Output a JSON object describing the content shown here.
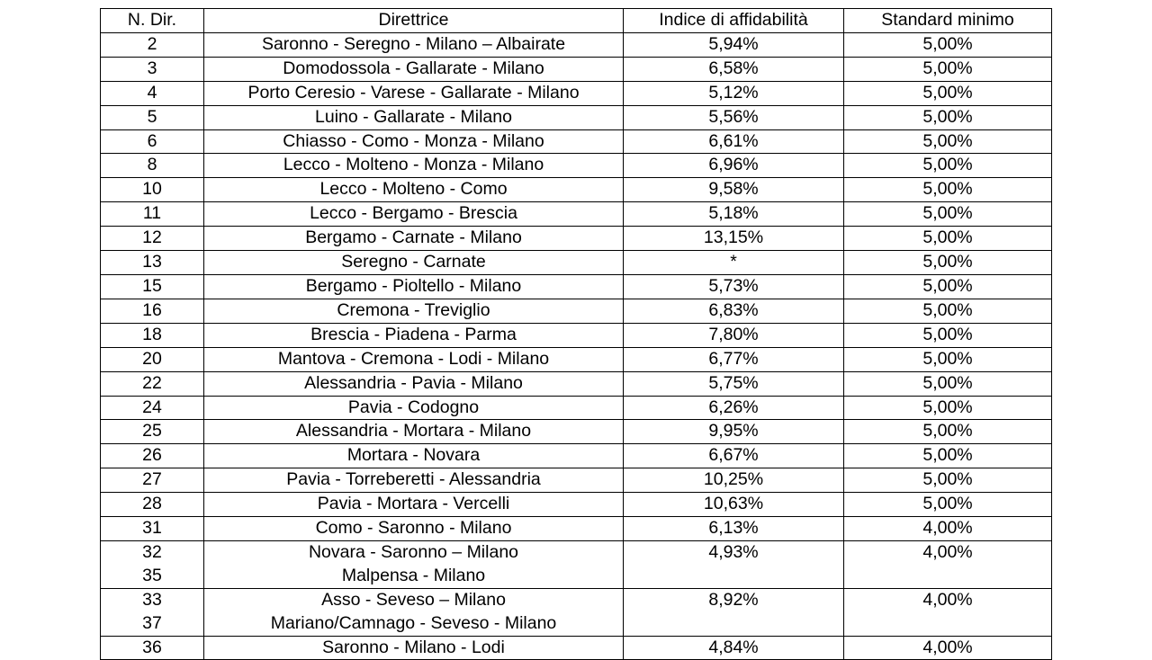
{
  "table": {
    "headers": [
      "N. Dir.",
      "Direttrice",
      "Indice di affidabilità",
      "Standard minimo"
    ],
    "rows": [
      {
        "n": [
          "2"
        ],
        "direttrice": [
          "Saronno - Seregno - Milano – Albairate"
        ],
        "indice": "5,94%",
        "standard": "5,00%"
      },
      {
        "n": [
          "3"
        ],
        "direttrice": [
          "Domodossola - Gallarate - Milano"
        ],
        "indice": "6,58%",
        "standard": "5,00%"
      },
      {
        "n": [
          "4"
        ],
        "direttrice": [
          "Porto Ceresio - Varese - Gallarate - Milano"
        ],
        "indice": "5,12%",
        "standard": "5,00%"
      },
      {
        "n": [
          "5"
        ],
        "direttrice": [
          "Luino - Gallarate - Milano"
        ],
        "indice": "5,56%",
        "standard": "5,00%"
      },
      {
        "n": [
          "6"
        ],
        "direttrice": [
          "Chiasso - Como - Monza - Milano"
        ],
        "indice": "6,61%",
        "standard": "5,00%"
      },
      {
        "n": [
          "8"
        ],
        "direttrice": [
          "Lecco - Molteno - Monza - Milano"
        ],
        "indice": "6,96%",
        "standard": "5,00%"
      },
      {
        "n": [
          "10"
        ],
        "direttrice": [
          "Lecco - Molteno - Como"
        ],
        "indice": "9,58%",
        "standard": "5,00%"
      },
      {
        "n": [
          "11"
        ],
        "direttrice": [
          "Lecco - Bergamo - Brescia"
        ],
        "indice": "5,18%",
        "standard": "5,00%"
      },
      {
        "n": [
          "12"
        ],
        "direttrice": [
          "Bergamo - Carnate - Milano"
        ],
        "indice": "13,15%",
        "standard": "5,00%"
      },
      {
        "n": [
          "13"
        ],
        "direttrice": [
          "Seregno - Carnate"
        ],
        "indice": "*",
        "standard": "5,00%"
      },
      {
        "n": [
          "15"
        ],
        "direttrice": [
          "Bergamo - Pioltello - Milano"
        ],
        "indice": "5,73%",
        "standard": "5,00%"
      },
      {
        "n": [
          "16"
        ],
        "direttrice": [
          "Cremona - Treviglio"
        ],
        "indice": "6,83%",
        "standard": "5,00%"
      },
      {
        "n": [
          "18"
        ],
        "direttrice": [
          "Brescia - Piadena - Parma"
        ],
        "indice": "7,80%",
        "standard": "5,00%"
      },
      {
        "n": [
          "20"
        ],
        "direttrice": [
          "Mantova - Cremona - Lodi - Milano"
        ],
        "indice": "6,77%",
        "standard": "5,00%"
      },
      {
        "n": [
          "22"
        ],
        "direttrice": [
          "Alessandria - Pavia - Milano"
        ],
        "indice": "5,75%",
        "standard": "5,00%"
      },
      {
        "n": [
          "24"
        ],
        "direttrice": [
          "Pavia - Codogno"
        ],
        "indice": "6,26%",
        "standard": "5,00%"
      },
      {
        "n": [
          "25"
        ],
        "direttrice": [
          "Alessandria - Mortara - Milano"
        ],
        "indice": "9,95%",
        "standard": "5,00%"
      },
      {
        "n": [
          "26"
        ],
        "direttrice": [
          "Mortara - Novara"
        ],
        "indice": "6,67%",
        "standard": "5,00%"
      },
      {
        "n": [
          "27"
        ],
        "direttrice": [
          "Pavia - Torreberetti - Alessandria"
        ],
        "indice": "10,25%",
        "standard": "5,00%"
      },
      {
        "n": [
          "28"
        ],
        "direttrice": [
          "Pavia - Mortara - Vercelli"
        ],
        "indice": "10,63%",
        "standard": "5,00%"
      },
      {
        "n": [
          "31"
        ],
        "direttrice": [
          "Como - Saronno - Milano"
        ],
        "indice": "6,13%",
        "standard": "4,00%"
      },
      {
        "n": [
          "32",
          "35"
        ],
        "direttrice": [
          "Novara - Saronno – Milano",
          "Malpensa - Milano"
        ],
        "indice": "4,93%",
        "standard": "4,00%"
      },
      {
        "n": [
          "33",
          "37"
        ],
        "direttrice": [
          "Asso - Seveso – Milano",
          "Mariano/Camnago - Seveso - Milano"
        ],
        "indice": "8,92%",
        "standard": "4,00%"
      },
      {
        "n": [
          "36"
        ],
        "direttrice": [
          "Saronno - Milano - Lodi"
        ],
        "indice": "4,84%",
        "standard": "4,00%"
      }
    ]
  }
}
